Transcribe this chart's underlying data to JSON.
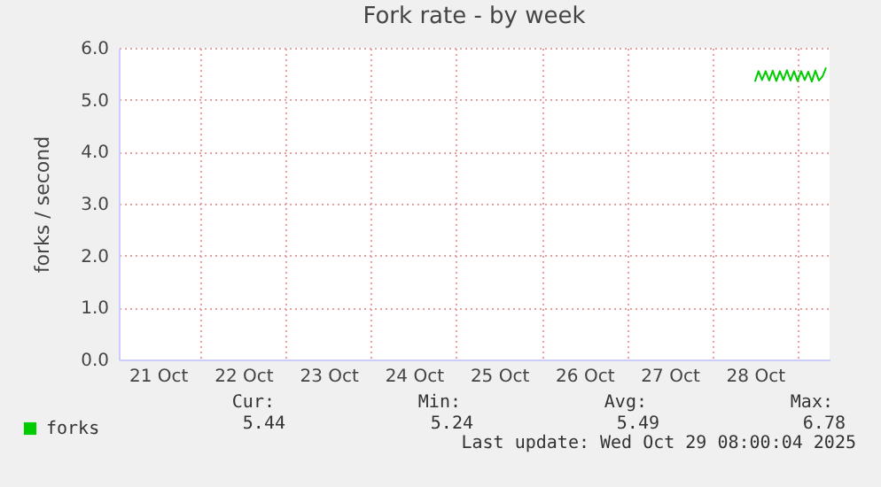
{
  "chart_data": {
    "type": "line",
    "title": "Fork rate - by week",
    "ylabel": "forks / second",
    "x": [
      "2025-10-28T12:00",
      "2025-10-28T13:00",
      "2025-10-28T14:00",
      "2025-10-28T15:00",
      "2025-10-28T16:00",
      "2025-10-28T17:00",
      "2025-10-28T18:00",
      "2025-10-28T19:00",
      "2025-10-28T20:00",
      "2025-10-28T21:00",
      "2025-10-28T22:00",
      "2025-10-28T23:00",
      "2025-10-29T00:00",
      "2025-10-29T01:00",
      "2025-10-29T02:00",
      "2025-10-29T03:00",
      "2025-10-29T04:00",
      "2025-10-29T05:00",
      "2025-10-29T06:00",
      "2025-10-29T07:00",
      "2025-10-29T08:00"
    ],
    "series": [
      {
        "name": "forks",
        "color": "#00cc00",
        "values": [
          5.35,
          5.55,
          5.38,
          5.55,
          5.37,
          5.56,
          5.36,
          5.55,
          5.38,
          5.57,
          5.37,
          5.55,
          5.36,
          5.55,
          5.38,
          5.54,
          5.35,
          5.56,
          5.37,
          5.45,
          5.62
        ]
      }
    ],
    "xlim": [
      "2025-10-21T01:00",
      "2025-10-29T09:00"
    ],
    "xticks": [
      {
        "value": "2025-10-21T12:00",
        "label": "21 Oct"
      },
      {
        "value": "2025-10-22T00:00",
        "label": null
      },
      {
        "value": "2025-10-22T12:00",
        "label": "22 Oct"
      },
      {
        "value": "2025-10-23T00:00",
        "label": null
      },
      {
        "value": "2025-10-23T12:00",
        "label": "23 Oct"
      },
      {
        "value": "2025-10-24T00:00",
        "label": null
      },
      {
        "value": "2025-10-24T12:00",
        "label": "24 Oct"
      },
      {
        "value": "2025-10-25T00:00",
        "label": null
      },
      {
        "value": "2025-10-25T12:00",
        "label": "25 Oct"
      },
      {
        "value": "2025-10-26T00:00",
        "label": null
      },
      {
        "value": "2025-10-26T12:00",
        "label": "26 Oct"
      },
      {
        "value": "2025-10-27T00:00",
        "label": null
      },
      {
        "value": "2025-10-27T12:00",
        "label": "27 Oct"
      },
      {
        "value": "2025-10-28T00:00",
        "label": null
      },
      {
        "value": "2025-10-28T12:00",
        "label": "28 Oct"
      },
      {
        "value": "2025-10-29T00:00",
        "label": null
      }
    ],
    "ylim": [
      0,
      6
    ],
    "yticks": [
      {
        "value": 0,
        "label": "0.0"
      },
      {
        "value": 1,
        "label": "1.0"
      },
      {
        "value": 2,
        "label": "2.0"
      },
      {
        "value": 3,
        "label": "3.0"
      },
      {
        "value": 4,
        "label": "4.0"
      },
      {
        "value": 5,
        "label": "5.0"
      },
      {
        "value": 6,
        "label": "6.0"
      }
    ],
    "grid": true,
    "legend": "bottom left",
    "marker": "none",
    "line_style": "solid",
    "annotations": [
      "Cur:",
      "Min:",
      "Avg:",
      "Max:",
      "5.44",
      "5.24",
      "5.49",
      "6.78",
      "Last update: Wed Oct 29 08:00:04 2025"
    ]
  }
}
